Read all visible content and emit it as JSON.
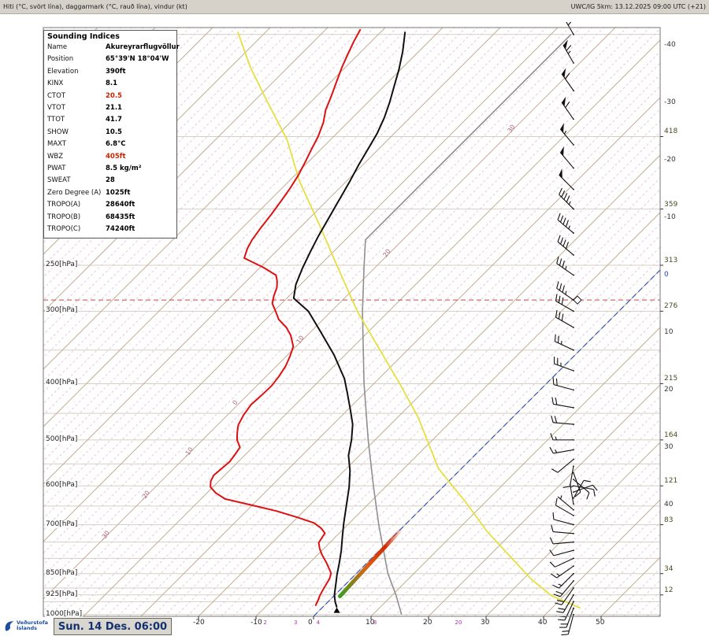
{
  "header": {
    "left": "Hiti (°C, svört lína), daggarmark (°C, rauð lína), vindur (kt)",
    "right": "UWC/IG 5km: 13.12.2025 09:00 UTC (+21)"
  },
  "footer": {
    "brand_line1": "Veðurstofa",
    "brand_line2": "Íslands",
    "date_label": "Sun. 14 Des. 06:00"
  },
  "indices": {
    "title": "Sounding Indices",
    "rows": [
      {
        "label": "Name",
        "value": "Akureyrarflugvöllur"
      },
      {
        "label": "Position",
        "value": "65°39'N 18°04'W"
      },
      {
        "label": "Elevation",
        "value": "390ft"
      },
      {
        "label": "KINX",
        "value": "8.1"
      },
      {
        "label": "CTOT",
        "value": "20.5",
        "color": "red"
      },
      {
        "label": "VTOT",
        "value": "21.1"
      },
      {
        "label": "TTOT",
        "value": "41.7"
      },
      {
        "label": "SHOW",
        "value": "10.5"
      },
      {
        "label": "MAXT",
        "value": "6.8°C"
      },
      {
        "label": "WBZ",
        "value": "405ft",
        "color": "red"
      },
      {
        "label": "PWAT",
        "value": "8.5 kg/m²"
      },
      {
        "label": "SWEAT",
        "value": "28"
      },
      {
        "label": "Zero Degree (A)",
        "value": "1025ft"
      },
      {
        "label": "TROPO(A)",
        "value": "28640ft"
      },
      {
        "label": "TROPO(B)",
        "value": "68435ft"
      },
      {
        "label": "TROPO(C)",
        "value": "74240ft"
      }
    ]
  },
  "axes": {
    "pressure_labels": [
      {
        "p": 250,
        "text": "250[hPa]"
      },
      {
        "p": 300,
        "text": "300[hPa]"
      },
      {
        "p": 400,
        "text": "400[hPa]"
      },
      {
        "p": 500,
        "text": "500[hPa]"
      },
      {
        "p": 600,
        "text": "600[hPa]"
      },
      {
        "p": 700,
        "text": "700[hPa]"
      },
      {
        "p": 850,
        "text": "850[hPa]"
      },
      {
        "p": 925,
        "text": "925[hPa]"
      },
      {
        "p": 1000,
        "text": "1000[hPa]"
      }
    ],
    "height_labels": [
      {
        "p": 150,
        "text": "418"
      },
      {
        "p": 200,
        "text": "359"
      },
      {
        "p": 250,
        "text": "313"
      },
      {
        "p": 300,
        "text": "276"
      },
      {
        "p": 400,
        "text": "215"
      },
      {
        "p": 500,
        "text": "164"
      },
      {
        "p": 600,
        "text": "121"
      },
      {
        "p": 700,
        "text": "83"
      },
      {
        "p": 850,
        "text": "34"
      },
      {
        "p": 925,
        "text": "12"
      }
    ],
    "right_temp_labels": [
      -40,
      -30,
      -20,
      -10,
      0,
      10,
      20,
      30,
      40
    ],
    "bottom_temp_labels": [
      -20,
      -10,
      0,
      10,
      20,
      30,
      40,
      50
    ],
    "mixing_ratio_labels": [
      2,
      3,
      4,
      8,
      20
    ],
    "adiabat_labels": [
      -30,
      -20,
      -10,
      0,
      10,
      20,
      30
    ]
  },
  "chart_data": {
    "type": "skew-t-log-p",
    "pressure_unit": "hPa",
    "temperature_unit": "°C",
    "wind_unit": "kt",
    "grid": {
      "pressure_lines": [
        100,
        150,
        200,
        250,
        300,
        350,
        400,
        450,
        500,
        550,
        600,
        650,
        700,
        750,
        800,
        850,
        900,
        925,
        950,
        1000
      ],
      "isotherm_step_minor": 2,
      "isotherm_step_major": 10,
      "dry_adiabats_theta_k": {
        "min": 230,
        "max": 440,
        "step": 10
      },
      "moist_adiabats_thetaw_c": {
        "min": -40,
        "max": 40,
        "step": 5
      },
      "mixing_ratios": [
        1,
        2,
        3,
        4,
        5,
        8,
        10,
        15,
        20,
        30
      ]
    },
    "tropopause_hpa": 287,
    "zero_isotherm_c": 0,
    "temperature_profile": [
      [
        972,
        2.5
      ],
      [
        950,
        1.2
      ],
      [
        925,
        -0.1
      ],
      [
        880,
        -2.0
      ],
      [
        853,
        -3.2
      ],
      [
        815,
        -4.8
      ],
      [
        776,
        -6.6
      ],
      [
        735,
        -8.8
      ],
      [
        695,
        -11.0
      ],
      [
        650,
        -13.5
      ],
      [
        603,
        -16.3
      ],
      [
        565,
        -19.0
      ],
      [
        532,
        -21.9
      ],
      [
        500,
        -24.1
      ],
      [
        470,
        -26.6
      ],
      [
        444,
        -29.5
      ],
      [
        415,
        -33.0
      ],
      [
        392,
        -36.0
      ],
      [
        357,
        -41.9
      ],
      [
        325,
        -48.4
      ],
      [
        300,
        -54.0
      ],
      [
        285,
        -58.8
      ],
      [
        270,
        -60.8
      ],
      [
        253,
        -62.5
      ],
      [
        237,
        -64.0
      ],
      [
        223,
        -65.3
      ],
      [
        208,
        -66.6
      ],
      [
        194,
        -67.9
      ],
      [
        180,
        -69.3
      ],
      [
        168,
        -70.7
      ],
      [
        158,
        -71.8
      ],
      [
        148,
        -73.0
      ],
      [
        139,
        -74.5
      ],
      [
        131,
        -76.2
      ],
      [
        123,
        -78.2
      ],
      [
        115,
        -80.3
      ],
      [
        107,
        -82.8
      ],
      [
        99,
        -85.8
      ]
    ],
    "dewpoint_profile": [
      [
        966,
        -1.5
      ],
      [
        945,
        -2.0
      ],
      [
        928,
        -2.5
      ],
      [
        900,
        -3.1
      ],
      [
        866,
        -3.8
      ],
      [
        848,
        -4.5
      ],
      [
        815,
        -7.0
      ],
      [
        788,
        -9.3
      ],
      [
        770,
        -10.7
      ],
      [
        752,
        -11.9
      ],
      [
        738,
        -12.2
      ],
      [
        724,
        -12.5
      ],
      [
        710,
        -14.0
      ],
      [
        695,
        -16.2
      ],
      [
        680,
        -20.0
      ],
      [
        663,
        -24.8
      ],
      [
        648,
        -30.0
      ],
      [
        632,
        -35.8
      ],
      [
        617,
        -38.5
      ],
      [
        603,
        -40.4
      ],
      [
        589,
        -41.4
      ],
      [
        575,
        -41.9
      ],
      [
        560,
        -41.7
      ],
      [
        545,
        -41.5
      ],
      [
        530,
        -41.8
      ],
      [
        515,
        -42.2
      ],
      [
        500,
        -44.0
      ],
      [
        485,
        -45.3
      ],
      [
        471,
        -46.4
      ],
      [
        453,
        -47.2
      ],
      [
        435,
        -47.7
      ],
      [
        419,
        -47.5
      ],
      [
        403,
        -47.4
      ],
      [
        388,
        -47.8
      ],
      [
        373,
        -48.4
      ],
      [
        358,
        -49.4
      ],
      [
        345,
        -50.5
      ],
      [
        330,
        -52.9
      ],
      [
        320,
        -55.0
      ],
      [
        310,
        -57.7
      ],
      [
        300,
        -59.7
      ],
      [
        291,
        -61.6
      ],
      [
        282,
        -62.7
      ],
      [
        273,
        -63.6
      ],
      [
        266,
        -64.7
      ],
      [
        260,
        -65.9
      ],
      [
        252,
        -69.5
      ],
      [
        243,
        -74.4
      ],
      [
        234,
        -75.5
      ],
      [
        226,
        -76.2
      ],
      [
        215,
        -76.8
      ],
      [
        204,
        -77.3
      ],
      [
        194,
        -77.9
      ],
      [
        185,
        -78.5
      ],
      [
        175,
        -79.4
      ],
      [
        166,
        -80.5
      ],
      [
        158,
        -81.6
      ],
      [
        150,
        -82.7
      ],
      [
        142,
        -84.2
      ],
      [
        135,
        -86.0
      ],
      [
        127,
        -87.6
      ],
      [
        120,
        -89.2
      ],
      [
        114,
        -90.6
      ],
      [
        108,
        -91.9
      ],
      [
        103,
        -93.0
      ],
      [
        98,
        -94.0
      ]
    ],
    "isa_profile": [
      [
        1000,
        15.0
      ],
      [
        925,
        10.6
      ],
      [
        850,
        5.5
      ],
      [
        700,
        -4.6
      ],
      [
        600,
        -12.3
      ],
      [
        500,
        -21.2
      ],
      [
        400,
        -31.7
      ],
      [
        300,
        -44.6
      ],
      [
        250,
        -52.3
      ],
      [
        226,
        -56.5
      ],
      [
        200,
        -56.5
      ],
      [
        150,
        -56.5
      ],
      [
        100,
        -56.5
      ]
    ],
    "reference_curve": [
      [
        975,
        45.0
      ],
      [
        928,
        37.8
      ],
      [
        870,
        31.5
      ],
      [
        801,
        24.5
      ],
      [
        720,
        15.5
      ],
      [
        641,
        6.7
      ],
      [
        560,
        -4.0
      ],
      [
        456,
        -16.6
      ],
      [
        400,
        -25.5
      ],
      [
        345,
        -35.8
      ],
      [
        300,
        -45.5
      ],
      [
        253,
        -56.3
      ],
      [
        215,
        -66.5
      ],
      [
        179,
        -78.2
      ],
      [
        152,
        -87.5
      ],
      [
        131,
        -97.4
      ],
      [
        114,
        -106.5
      ],
      [
        99,
        -114.9
      ]
    ],
    "wind_barbs": [
      [
        100,
        330,
        70
      ],
      [
        112,
        330,
        65
      ],
      [
        125,
        325,
        60
      ],
      [
        140,
        325,
        60
      ],
      [
        155,
        320,
        55
      ],
      [
        170,
        320,
        50
      ],
      [
        185,
        315,
        50
      ],
      [
        200,
        315,
        45
      ],
      [
        220,
        310,
        45
      ],
      [
        240,
        310,
        40
      ],
      [
        260,
        305,
        35
      ],
      [
        287,
        305,
        35
      ],
      [
        300,
        300,
        30
      ],
      [
        320,
        300,
        30
      ],
      [
        350,
        295,
        25
      ],
      [
        380,
        290,
        25
      ],
      [
        410,
        285,
        20
      ],
      [
        440,
        280,
        20
      ],
      [
        470,
        275,
        18
      ],
      [
        500,
        270,
        15
      ],
      [
        520,
        260,
        15
      ],
      [
        540,
        230,
        12
      ],
      [
        555,
        190,
        10
      ],
      [
        570,
        160,
        10
      ],
      [
        585,
        130,
        8
      ],
      [
        600,
        100,
        8
      ],
      [
        615,
        70,
        8
      ],
      [
        630,
        30,
        8
      ],
      [
        645,
        350,
        5
      ],
      [
        660,
        310,
        5
      ],
      [
        675,
        300,
        8
      ],
      [
        700,
        285,
        10
      ],
      [
        725,
        275,
        10
      ],
      [
        750,
        265,
        10
      ],
      [
        775,
        255,
        12
      ],
      [
        800,
        245,
        12
      ],
      [
        825,
        235,
        15
      ],
      [
        850,
        225,
        15
      ],
      [
        875,
        220,
        18
      ],
      [
        900,
        215,
        18
      ],
      [
        925,
        210,
        20
      ],
      [
        950,
        205,
        22
      ],
      [
        975,
        200,
        22
      ],
      [
        1000,
        195,
        20
      ]
    ],
    "highlight_segment": {
      "from": [
        930,
        1.1
      ],
      "to": [
        716,
        0.1
      ],
      "colors": [
        "#3a9d23",
        "#e06010",
        "#d42a00"
      ]
    },
    "colors": {
      "temperature": "#101010",
      "dewpoint": "#dd1111",
      "isa": "#8f8f8f",
      "reference": "#e6df3e",
      "zero_isotherm": "#3355cc",
      "tropopause": "#cc4444",
      "wind_barbs": "#111111"
    }
  }
}
